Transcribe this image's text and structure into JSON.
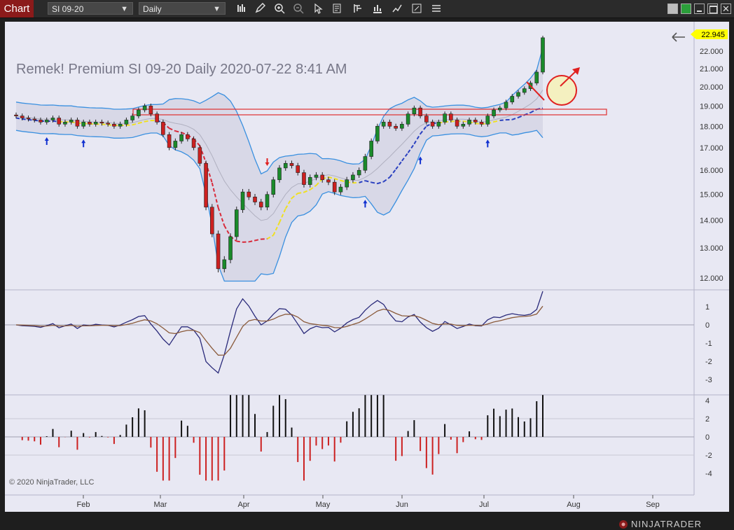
{
  "toolbar": {
    "chart_tab": "Chart",
    "instrument": "SI 09-20",
    "period": "Daily",
    "tools": [
      "bar-style-icon",
      "pencil-icon",
      "zoom-in-icon",
      "zoom-out-icon",
      "pointer-icon",
      "data-box-icon",
      "properties-icon",
      "strategies-icon",
      "drawing-tools-icon",
      "templates-icon",
      "more-icon"
    ]
  },
  "chart": {
    "title": "Remek!  Premium  SI 09-20  Daily  2020-07-22 8:41 AM",
    "price_badge": "22.945",
    "copyright": "© 2020 NinjaTrader, LLC",
    "brand": "NINJATRADER",
    "colors": {
      "up": "#1a8a2a",
      "down": "#cc2020",
      "band": "#3a90e0",
      "badge": "#ffff00",
      "alert": "#e02020"
    }
  },
  "chart_data": {
    "type": "candlestick",
    "price_axis": [
      "22.000",
      "21.000",
      "20.000",
      "19.000",
      "18.000",
      "17.000",
      "16.000",
      "15.000",
      "14.000",
      "13.000",
      "12.000"
    ],
    "x_ticks": [
      "Feb",
      "Mar",
      "Apr",
      "May",
      "Jun",
      "Jul",
      "Aug",
      "Sep"
    ],
    "osc1_axis": [
      "1",
      "0",
      "-1",
      "-2",
      "-3"
    ],
    "osc2_axis": [
      "4",
      "2",
      "0",
      "-2",
      "-4"
    ],
    "closes": [
      18.5,
      18.4,
      18.35,
      18.3,
      18.2,
      18.3,
      18.4,
      18.1,
      18.2,
      18.3,
      18.0,
      18.2,
      18.1,
      18.2,
      18.15,
      18.1,
      18.0,
      18.1,
      18.3,
      18.5,
      18.8,
      19.0,
      18.6,
      18.2,
      17.6,
      17.0,
      17.3,
      17.6,
      17.4,
      17.0,
      16.3,
      14.5,
      13.5,
      12.3,
      12.6,
      13.4,
      14.4,
      15.1,
      14.9,
      14.7,
      14.5,
      15.0,
      15.6,
      16.1,
      16.3,
      16.2,
      15.9,
      15.4,
      15.7,
      15.8,
      15.6,
      15.5,
      15.1,
      15.3,
      15.6,
      15.8,
      16.0,
      16.6,
      17.3,
      18.0,
      18.2,
      18.0,
      17.9,
      18.1,
      18.6,
      18.9,
      18.5,
      18.2,
      18.0,
      18.2,
      18.6,
      18.3,
      18.0,
      18.1,
      18.3,
      18.2,
      18.1,
      18.5,
      18.8,
      18.9,
      19.2,
      19.5,
      19.7,
      19.9,
      20.2,
      20.8,
      22.8
    ]
  }
}
